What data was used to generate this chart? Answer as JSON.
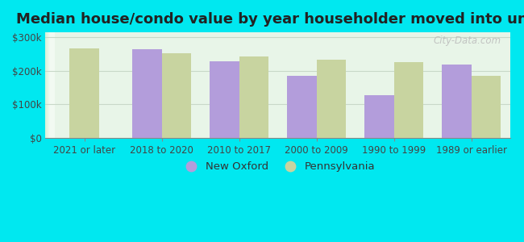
{
  "title": "Median house/condo value by year householder moved into unit",
  "categories": [
    "2021 or later",
    "2018 to 2020",
    "2010 to 2017",
    "2000 to 2009",
    "1990 to 1999",
    "1989 or earlier"
  ],
  "new_oxford": [
    null,
    265000,
    228000,
    185000,
    128000,
    218000
  ],
  "pennsylvania": [
    268000,
    252000,
    242000,
    232000,
    225000,
    185000
  ],
  "bar_color_oxford": "#b39ddb",
  "bar_color_pa": "#c8d4a0",
  "background_outer": "#00e8f0",
  "background_inner_left": "#d0ece0",
  "background_inner_right": "#eef8ee",
  "grid_color": "#c8d8c8",
  "yticks": [
    0,
    100000,
    200000,
    300000
  ],
  "ylim": [
    0,
    315000
  ],
  "legend_oxford": "New Oxford",
  "legend_pa": "Pennsylvania",
  "watermark": "City-Data.com",
  "title_fontsize": 13,
  "tick_fontsize": 8.5,
  "legend_fontsize": 9.5
}
